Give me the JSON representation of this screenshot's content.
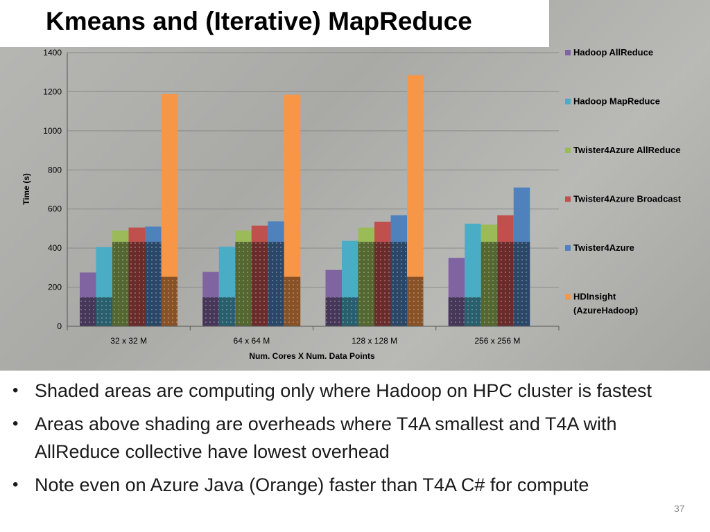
{
  "slide": {
    "title": "Kmeans and (Iterative) MapReduce",
    "number": "37"
  },
  "bullets": [
    "Shaded areas are computing only where Hadoop on HPC cluster is fastest",
    "Areas above shading are overheads where T4A smallest and T4A with AllReduce collective have lowest overhead",
    "Note even on Azure Java (Orange) faster than T4A C# for compute"
  ],
  "chart_data": {
    "type": "bar",
    "xlabel": "Num. Cores X Num. Data Points",
    "ylabel": "Time (s)",
    "ylim": [
      0,
      1400
    ],
    "yticks": [
      0,
      200,
      400,
      600,
      800,
      1000,
      1200,
      1400
    ],
    "grid": true,
    "legend_position": "right",
    "categories": [
      "32 x 32 M",
      "64 x 64 M",
      "128 x 128 M",
      "256 x 256 M"
    ],
    "series": [
      {
        "name": "Hadoop AllReduce",
        "color": "#8064a2",
        "values": [
          275,
          278,
          288,
          350
        ],
        "shaded_compute": [
          148,
          148,
          148,
          148
        ]
      },
      {
        "name": "Hadoop MapReduce",
        "color": "#4bacc6",
        "values": [
          405,
          407,
          437,
          525
        ],
        "shaded_compute": [
          148,
          148,
          148,
          148
        ]
      },
      {
        "name": "Twister4Azure AllReduce",
        "color": "#9bbb59",
        "values": [
          490,
          490,
          505,
          520
        ],
        "shaded_compute": [
          432,
          432,
          432,
          432
        ]
      },
      {
        "name": "Twister4Azure Broadcast",
        "color": "#c0504d",
        "values": [
          505,
          515,
          535,
          568
        ],
        "shaded_compute": [
          432,
          432,
          432,
          432
        ]
      },
      {
        "name": "Twister4Azure",
        "color": "#4f81bd",
        "values": [
          510,
          537,
          568,
          710
        ],
        "shaded_compute": [
          432,
          432,
          432,
          432
        ]
      },
      {
        "name": "HDInsight (AzureHadoop)",
        "color": "#f79646",
        "values": [
          1188,
          1185,
          1285,
          null
        ],
        "shaded_compute": [
          253,
          253,
          253,
          null
        ]
      }
    ]
  }
}
